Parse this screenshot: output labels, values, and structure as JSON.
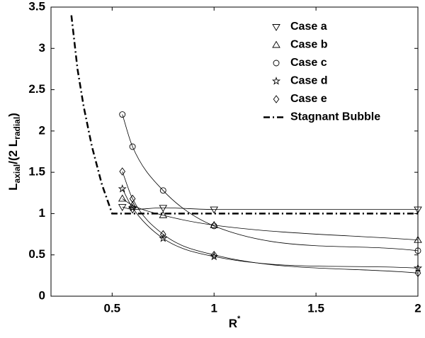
{
  "chart_data": {
    "type": "line",
    "xlabel": {
      "main": "R",
      "sup": "*"
    },
    "ylabel": {
      "parts": [
        "L",
        "axial",
        "/(2 L",
        "radial",
        ")"
      ]
    },
    "xlim": [
      0.2,
      2
    ],
    "xticks": [
      0.5,
      1,
      1.5,
      2
    ],
    "ylim": [
      0,
      3.5
    ],
    "yticks": [
      0,
      0.5,
      1,
      1.5,
      2,
      2.5,
      3,
      3.5
    ],
    "grid": false,
    "legend": "upper right",
    "series": [
      {
        "name": "Case a",
        "color": "#000000",
        "marker": "triangle-down",
        "line": "fit",
        "x": [
          0.55,
          0.6,
          0.75,
          1,
          2
        ],
        "values": [
          1.08,
          1.05,
          1.07,
          1.05,
          1.05
        ]
      },
      {
        "name": "Case b",
        "color": "#000000",
        "marker": "triangle-up",
        "line": "fit",
        "x": [
          0.55,
          0.6,
          0.75,
          1,
          2
        ],
        "values": [
          1.18,
          1.1,
          0.98,
          0.86,
          0.68
        ]
      },
      {
        "name": "Case c",
        "color": "#000000",
        "marker": "circle",
        "line": "fit",
        "x": [
          0.55,
          0.6,
          0.75,
          1,
          2
        ],
        "values": [
          2.2,
          1.81,
          1.28,
          0.85,
          0.55
        ]
      },
      {
        "name": "Case d",
        "color": "#000000",
        "marker": "star",
        "line": "fit",
        "x": [
          0.55,
          0.6,
          0.75,
          1,
          2
        ],
        "values": [
          1.3,
          1.07,
          0.7,
          0.48,
          0.34
        ]
      },
      {
        "name": "Case e",
        "color": "#000000",
        "marker": "diamond",
        "line": "fit",
        "x": [
          0.55,
          0.6,
          0.75,
          1,
          2
        ],
        "values": [
          1.51,
          1.18,
          0.75,
          0.5,
          0.28
        ]
      },
      {
        "name": "Stagnant Bubble",
        "color": "#000000",
        "marker": "none",
        "line": "dashdot",
        "x": [
          0.3,
          0.33,
          0.36,
          0.4,
          0.45,
          0.5,
          2
        ],
        "values": [
          3.4,
          2.75,
          2.3,
          1.82,
          1.35,
          1.0,
          1.0
        ]
      }
    ]
  }
}
